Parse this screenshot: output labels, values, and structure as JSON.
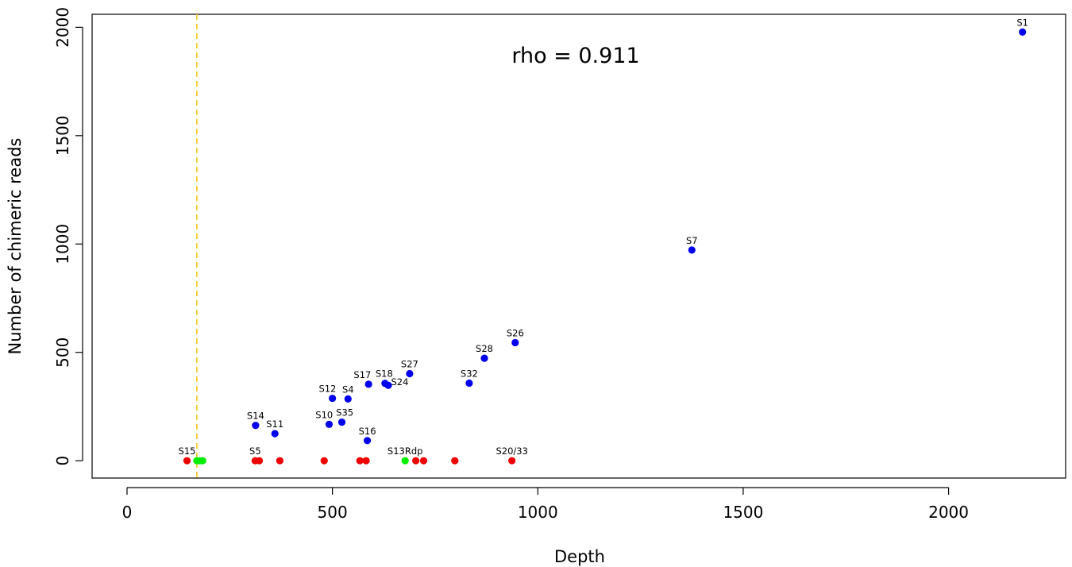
{
  "chart_data": {
    "type": "scatter",
    "xlabel": "Depth",
    "ylabel": "Number of chimeric reads",
    "xlim": [
      -85,
      2285
    ],
    "ylim": [
      -80,
      2060
    ],
    "xticks": [
      0,
      500,
      1000,
      1500,
      2000
    ],
    "yticks": [
      0,
      500,
      1000,
      1500,
      2000
    ],
    "annotation": "rho = 0.911",
    "threshold_line": {
      "x": 170,
      "color": "#f5c518",
      "style": "dashed"
    },
    "colors": {
      "blue": "#0000ee",
      "red": "#ee0000",
      "green": "#00ee00"
    },
    "points": [
      {
        "x": 2180,
        "y": 1978,
        "color": "blue"
      },
      {
        "x": 1375,
        "y": 972,
        "color": "blue"
      },
      {
        "x": 945,
        "y": 545,
        "color": "blue"
      },
      {
        "x": 870,
        "y": 473,
        "color": "blue"
      },
      {
        "x": 833,
        "y": 358,
        "color": "blue"
      },
      {
        "x": 688,
        "y": 402,
        "color": "blue"
      },
      {
        "x": 628,
        "y": 357,
        "color": "blue"
      },
      {
        "x": 636,
        "y": 348,
        "color": "blue"
      },
      {
        "x": 588,
        "y": 353,
        "color": "blue"
      },
      {
        "x": 500,
        "y": 288,
        "color": "blue"
      },
      {
        "x": 538,
        "y": 285,
        "color": "blue"
      },
      {
        "x": 492,
        "y": 168,
        "color": "blue"
      },
      {
        "x": 523,
        "y": 178,
        "color": "blue"
      },
      {
        "x": 585,
        "y": 93,
        "color": "blue"
      },
      {
        "x": 313,
        "y": 163,
        "color": "blue"
      },
      {
        "x": 360,
        "y": 125,
        "color": "blue"
      },
      {
        "x": 146,
        "y": 0,
        "color": "red"
      },
      {
        "x": 312,
        "y": 0,
        "color": "red"
      },
      {
        "x": 322,
        "y": 0,
        "color": "red"
      },
      {
        "x": 372,
        "y": 0,
        "color": "red"
      },
      {
        "x": 480,
        "y": 0,
        "color": "red"
      },
      {
        "x": 567,
        "y": 0,
        "color": "red"
      },
      {
        "x": 582,
        "y": 0,
        "color": "red"
      },
      {
        "x": 703,
        "y": 0,
        "color": "red"
      },
      {
        "x": 722,
        "y": 0,
        "color": "red"
      },
      {
        "x": 798,
        "y": 0,
        "color": "red"
      },
      {
        "x": 937,
        "y": 0,
        "color": "red"
      },
      {
        "x": 170,
        "y": 0,
        "color": "green"
      },
      {
        "x": 177,
        "y": 0,
        "color": "green"
      },
      {
        "x": 184,
        "y": 0,
        "color": "green"
      },
      {
        "x": 677,
        "y": 0,
        "color": "green"
      }
    ],
    "point_labels": [
      {
        "text": "S1",
        "x": 2180,
        "y": 1978
      },
      {
        "text": "S7",
        "x": 1375,
        "y": 972
      },
      {
        "text": "S26",
        "x": 945,
        "y": 545
      },
      {
        "text": "S28",
        "x": 870,
        "y": 473
      },
      {
        "text": "S32",
        "x": 833,
        "y": 358
      },
      {
        "text": "S27",
        "x": 688,
        "y": 402
      },
      {
        "text": "S18",
        "x": 626,
        "y": 357
      },
      {
        "text": "S24",
        "x": 664,
        "y": 320
      },
      {
        "text": "S17",
        "x": 573,
        "y": 353
      },
      {
        "text": "S12",
        "x": 488,
        "y": 288
      },
      {
        "text": "S4",
        "x": 538,
        "y": 285
      },
      {
        "text": "S10",
        "x": 480,
        "y": 168
      },
      {
        "text": "S35",
        "x": 530,
        "y": 178
      },
      {
        "text": "S16",
        "x": 585,
        "y": 93
      },
      {
        "text": "S14",
        "x": 313,
        "y": 163
      },
      {
        "text": "S11",
        "x": 360,
        "y": 125
      },
      {
        "text": "S15",
        "x": 146,
        "y": 0
      },
      {
        "text": "S5",
        "x": 312,
        "y": 0
      },
      {
        "text": "S13Rdp",
        "x": 677,
        "y": 0
      },
      {
        "text": "S20/33",
        "x": 937,
        "y": 0
      }
    ]
  }
}
